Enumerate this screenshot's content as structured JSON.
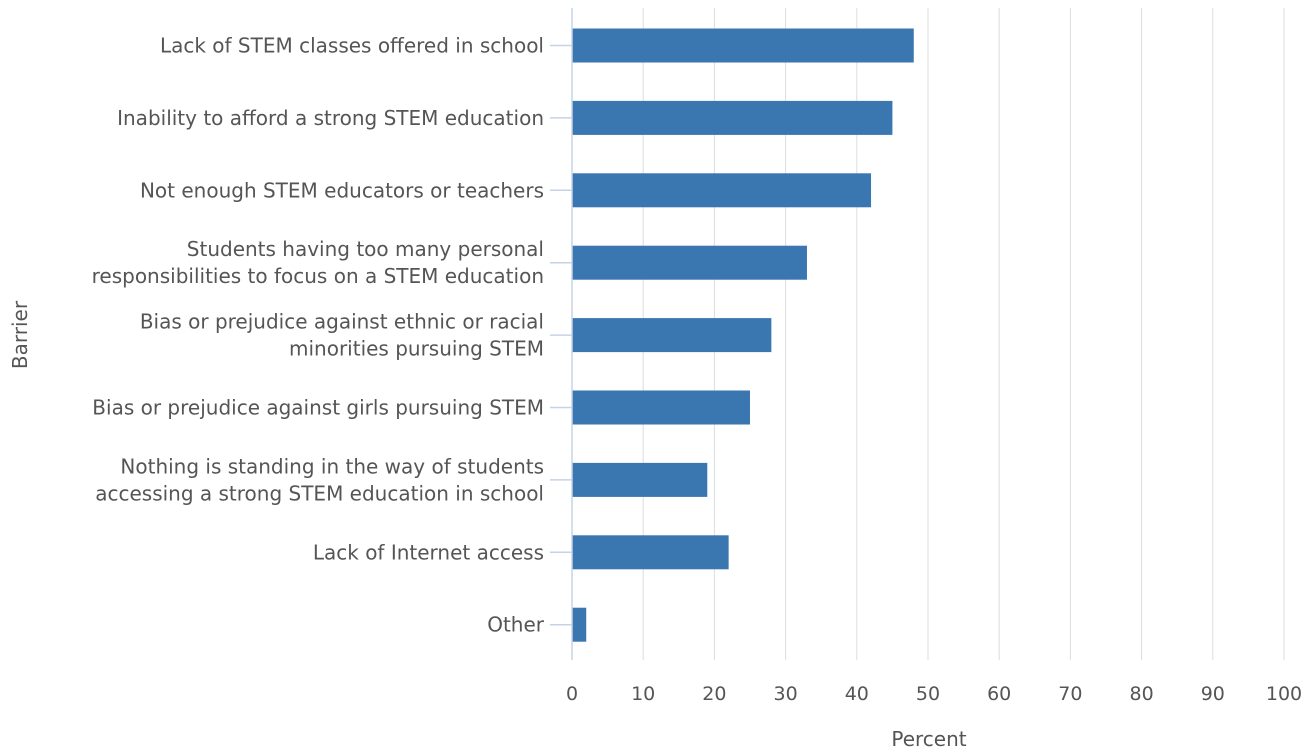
{
  "chart_data": {
    "type": "bar",
    "orientation": "horizontal",
    "categories": [
      [
        "Lack of STEM classes offered in school"
      ],
      [
        "Inability to afford a strong STEM education"
      ],
      [
        "Not enough STEM educators or teachers"
      ],
      [
        "Students having too many personal",
        "responsibilities to focus on a STEM education"
      ],
      [
        "Bias or prejudice against ethnic or racial",
        "minorities pursuing STEM"
      ],
      [
        "Bias or prejudice against girls pursuing STEM"
      ],
      [
        "Nothing is standing in the way of students",
        "accessing a strong STEM education in school"
      ],
      [
        "Lack of Internet access"
      ],
      [
        "Other"
      ]
    ],
    "values": [
      48,
      45,
      42,
      33,
      28,
      25,
      19,
      22,
      2
    ],
    "xlabel": "Percent",
    "ylabel": "Barrier",
    "xlim": [
      0,
      100
    ],
    "xticks": [
      0,
      10,
      20,
      30,
      40,
      50,
      60,
      70,
      80,
      90,
      100
    ],
    "grid": true,
    "bar_color": "#3a76b0",
    "grid_color": "#dddddd",
    "axis_color": "#c5d3e6"
  }
}
